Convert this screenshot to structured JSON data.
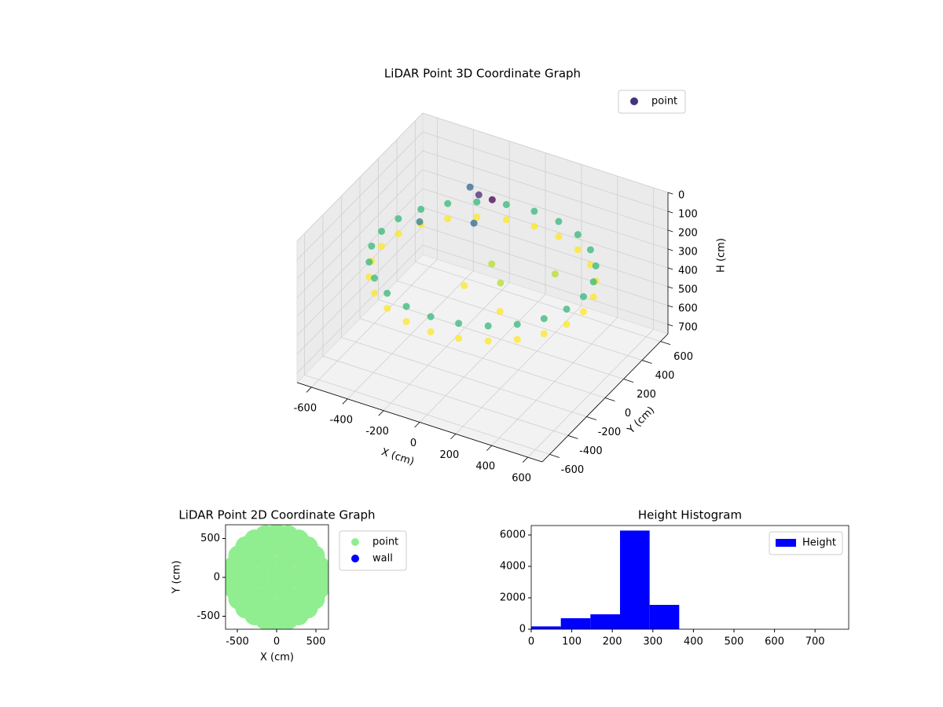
{
  "chart_data": [
    {
      "type": "scatter3d",
      "title": "LiDAR Point 3D Coordinate Graph",
      "xlabel": "X (cm)",
      "ylabel": "Y (cm)",
      "zlabel": "H (cm)",
      "xlim": [
        -680,
        680
      ],
      "ylim": [
        -680,
        680
      ],
      "zlim": [
        750,
        0
      ],
      "xticks": [
        -600,
        -400,
        -200,
        0,
        200,
        400,
        600
      ],
      "yticks": [
        -600,
        -400,
        -200,
        0,
        200,
        400,
        600
      ],
      "zticks": [
        0,
        100,
        200,
        300,
        400,
        500,
        600,
        700
      ],
      "grid": true,
      "legend_loc": "upper right",
      "colormap": "viridis",
      "series": [
        {
          "name": "point",
          "color": "#46327e",
          "x": [
            560,
            541,
            485,
            396,
            280,
            145,
            0,
            -145,
            -280,
            -396,
            -485,
            -541,
            -560,
            -541,
            -485,
            -396,
            -280,
            -145,
            0,
            145,
            280,
            396,
            485,
            541,
            560,
            541,
            485,
            396,
            280,
            145,
            0,
            -145,
            -280,
            -396,
            -485,
            -541,
            -560,
            -541,
            -485,
            -396,
            -280,
            -145,
            0,
            145,
            280,
            396,
            485,
            541,
            -200,
            -100,
            -300,
            -150,
            0,
            100,
            -50,
            200,
            -400,
            300
          ],
          "y": [
            0,
            145,
            280,
            396,
            485,
            541,
            560,
            541,
            485,
            396,
            280,
            145,
            0,
            -145,
            -280,
            -396,
            -485,
            -541,
            -560,
            -541,
            -485,
            -396,
            -280,
            -145,
            0,
            145,
            280,
            396,
            485,
            541,
            560,
            541,
            485,
            396,
            280,
            145,
            0,
            -145,
            -280,
            -396,
            -485,
            -541,
            -560,
            -541,
            -485,
            -396,
            -280,
            -145,
            350,
            300,
            450,
            200,
            100,
            0,
            -100,
            -200,
            100,
            200
          ],
          "h": [
            250,
            250,
            250,
            250,
            250,
            250,
            250,
            250,
            250,
            250,
            250,
            250,
            250,
            250,
            250,
            250,
            250,
            250,
            250,
            250,
            250,
            250,
            250,
            250,
            330,
            330,
            330,
            330,
            330,
            330,
            330,
            330,
            330,
            330,
            330,
            330,
            330,
            330,
            330,
            330,
            330,
            330,
            330,
            330,
            330,
            330,
            330,
            330,
            120,
            90,
            160,
            180,
            300,
            320,
            330,
            340,
            200,
            310
          ]
        }
      ]
    },
    {
      "type": "scatter",
      "title": "LiDAR Point 2D Coordinate Graph",
      "xlabel": "X (cm)",
      "ylabel": "Y (cm)",
      "xlim": [
        -650,
        660
      ],
      "ylim": [
        -667,
        677
      ],
      "xticks": [
        -500,
        0,
        500
      ],
      "yticks": [
        -500,
        0,
        500
      ],
      "legend_loc": "outside right",
      "series": [
        {
          "name": "point",
          "color": "#90ee90",
          "x": [
            560,
            541,
            485,
            396,
            280,
            145,
            0,
            -145,
            -280,
            -396,
            -485,
            -541,
            -560,
            -541,
            -485,
            -396,
            -280,
            -145,
            0,
            145,
            280,
            396,
            485,
            541,
            400,
            346,
            200,
            0,
            -200,
            -346,
            -400,
            -346,
            -200,
            0,
            200,
            346,
            230,
            115,
            -115,
            -230,
            -115,
            115,
            0
          ],
          "y": [
            0,
            145,
            280,
            396,
            485,
            541,
            560,
            541,
            485,
            396,
            280,
            145,
            0,
            -145,
            -280,
            -396,
            -485,
            -541,
            -560,
            -541,
            -485,
            -396,
            -280,
            -145,
            0,
            200,
            346,
            400,
            346,
            200,
            0,
            -200,
            -346,
            -400,
            -346,
            -200,
            0,
            199,
            199,
            0,
            -199,
            -199,
            0
          ]
        },
        {
          "name": "wall",
          "color": "#0000ff",
          "x": [],
          "y": []
        }
      ]
    },
    {
      "type": "histogram",
      "title": "Height Histogram",
      "xlim": [
        0,
        783
      ],
      "ylim": [
        0,
        6600
      ],
      "xticks": [
        0,
        100,
        200,
        300,
        400,
        500,
        600,
        700
      ],
      "yticks": [
        0,
        2000,
        4000,
        6000
      ],
      "legend_loc": "upper right",
      "bins": [
        0,
        73,
        146,
        219,
        292,
        365,
        438,
        511,
        584,
        657,
        730
      ],
      "series": [
        {
          "name": "Height",
          "color": "#0000ff",
          "values": [
            180,
            700,
            950,
            6280,
            1550,
            10,
            5,
            5,
            3,
            2
          ]
        }
      ]
    }
  ]
}
